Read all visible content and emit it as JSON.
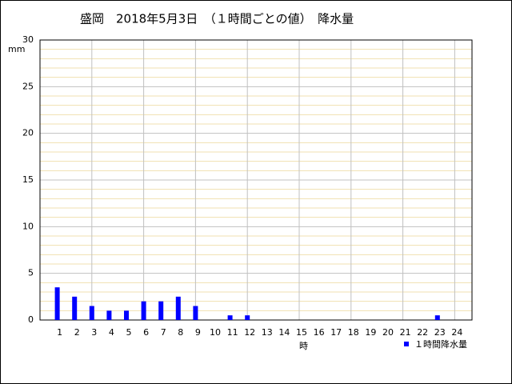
{
  "chart_data": {
    "type": "bar",
    "title": "盛岡　2018年5月3日　（１時間ごとの値）　降水量",
    "y_label": "mm",
    "x_label": "時",
    "x": [
      1,
      2,
      3,
      4,
      5,
      6,
      7,
      8,
      9,
      10,
      11,
      12,
      13,
      14,
      15,
      16,
      17,
      18,
      19,
      20,
      21,
      22,
      23,
      24
    ],
    "series": [
      {
        "name": "１時間降水量",
        "color": "#0000ff",
        "values": [
          3.5,
          2.5,
          1.5,
          1,
          1,
          2,
          2,
          2.5,
          1.5,
          0,
          0.5,
          0.5,
          0,
          0,
          0,
          0,
          0,
          0,
          0,
          0,
          0,
          0,
          0.5,
          0
        ]
      }
    ],
    "xlim": [
      0,
      25
    ],
    "xticks": [
      1,
      2,
      3,
      4,
      5,
      6,
      7,
      8,
      9,
      10,
      11,
      12,
      13,
      14,
      15,
      16,
      17,
      18,
      19,
      20,
      21,
      22,
      23,
      24
    ],
    "ylim": [
      0,
      30
    ],
    "yticks": [
      0,
      5,
      10,
      15,
      20,
      25,
      30
    ],
    "grid": true
  }
}
